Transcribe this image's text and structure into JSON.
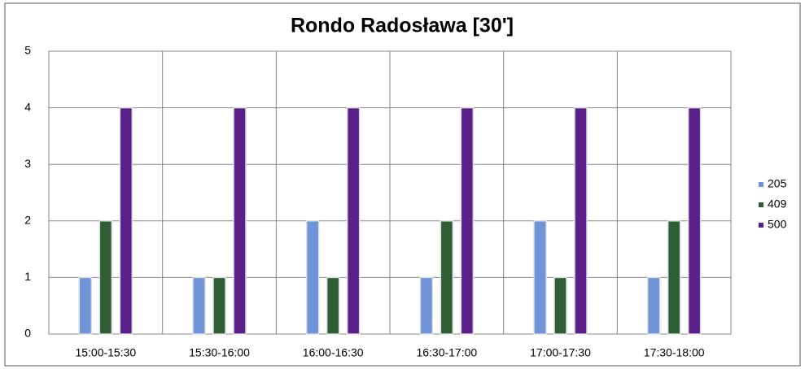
{
  "chart_data": {
    "type": "bar",
    "title": "Rondo Radosława [30']",
    "categories": [
      "15:00-15:30",
      "15:30-16:00",
      "16:00-16:30",
      "16:30-17:00",
      "17:00-17:30",
      "17:30-18:00"
    ],
    "series": [
      {
        "name": "205",
        "color": "#6f94d8",
        "values": [
          1,
          1,
          2,
          1,
          2,
          1
        ]
      },
      {
        "name": "409",
        "color": "#2e5e35",
        "values": [
          2,
          1,
          1,
          2,
          1,
          2
        ]
      },
      {
        "name": "500",
        "color": "#5b1f8a",
        "values": [
          4,
          4,
          4,
          4,
          4,
          4
        ]
      }
    ],
    "ylim": [
      0,
      5
    ],
    "yticks": [
      0,
      1,
      2,
      3,
      4,
      5
    ],
    "grid": true,
    "legend": "right"
  }
}
